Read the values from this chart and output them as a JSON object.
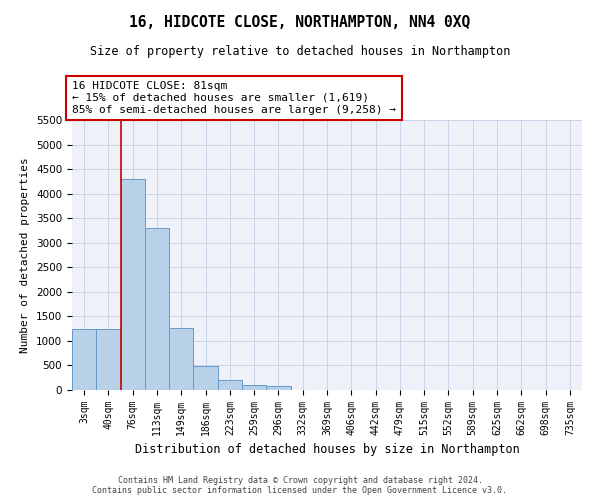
{
  "title": "16, HIDCOTE CLOSE, NORTHAMPTON, NN4 0XQ",
  "subtitle": "Size of property relative to detached houses in Northampton",
  "xlabel": "Distribution of detached houses by size in Northampton",
  "ylabel": "Number of detached properties",
  "footer_line1": "Contains HM Land Registry data © Crown copyright and database right 2024.",
  "footer_line2": "Contains public sector information licensed under the Open Government Licence v3.0.",
  "categories": [
    "3sqm",
    "40sqm",
    "76sqm",
    "113sqm",
    "149sqm",
    "186sqm",
    "223sqm",
    "259sqm",
    "296sqm",
    "332sqm",
    "369sqm",
    "406sqm",
    "442sqm",
    "479sqm",
    "515sqm",
    "552sqm",
    "589sqm",
    "625sqm",
    "662sqm",
    "698sqm",
    "735sqm"
  ],
  "values": [
    1250,
    1250,
    4300,
    3300,
    1270,
    480,
    200,
    110,
    80,
    0,
    0,
    0,
    0,
    0,
    0,
    0,
    0,
    0,
    0,
    0,
    0
  ],
  "bar_color": "#b8d0e8",
  "bar_edge_color": "#6699cc",
  "grid_color": "#c8d4e8",
  "background_color": "#eef2f8",
  "annotation_box_color": "#ffffff",
  "annotation_box_edge": "#cc0000",
  "vline_color": "#cc0000",
  "vline_x_index": 2,
  "annotation_title": "16 HIDCOTE CLOSE: 81sqm",
  "annotation_line1": "← 15% of detached houses are smaller (1,619)",
  "annotation_line2": "85% of semi-detached houses are larger (9,258) →",
  "ylim": [
    0,
    5500
  ],
  "yticks": [
    0,
    500,
    1000,
    1500,
    2000,
    2500,
    3000,
    3500,
    4000,
    4500,
    5000,
    5500
  ]
}
